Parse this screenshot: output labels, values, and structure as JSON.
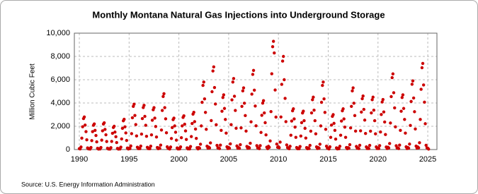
{
  "chart_data": {
    "type": "scatter",
    "title": "Monthly Montana Natural Gas Injections into Underground Storage",
    "y_label": "Million Cubic Feet",
    "source": "Source: U.S. Energy Information Administration",
    "color": "#cc0000",
    "grid": true,
    "xlim": [
      1989.5,
      2025.92
    ],
    "ylim": [
      0,
      10000
    ],
    "xticks": [
      1990,
      1995,
      2000,
      2005,
      2010,
      2015,
      2020,
      2025
    ],
    "yticks": [
      0,
      {
        "value": 2000,
        "label": "2,000"
      },
      {
        "value": 4000,
        "label": "4,000"
      },
      {
        "value": 6000,
        "label": "6,000"
      },
      {
        "value": 8000,
        "label": "8,000"
      },
      {
        "value": 10000,
        "label": "10,000"
      }
    ],
    "x": [
      1990.0,
      1990.08,
      1990.17,
      1990.25,
      1990.33,
      1990.42,
      1990.5,
      1990.58,
      1990.67,
      1990.75,
      1990.83,
      1990.92,
      1991.0,
      1991.08,
      1991.17,
      1991.25,
      1991.33,
      1991.42,
      1991.5,
      1991.58,
      1991.67,
      1991.75,
      1991.83,
      1991.92,
      1992.0,
      1992.08,
      1992.17,
      1992.25,
      1992.33,
      1992.42,
      1992.5,
      1992.58,
      1992.67,
      1992.75,
      1992.83,
      1992.92,
      1993.0,
      1993.08,
      1993.17,
      1993.25,
      1993.33,
      1993.42,
      1993.5,
      1993.58,
      1993.67,
      1993.75,
      1993.83,
      1993.92,
      1994.0,
      1994.08,
      1994.17,
      1994.25,
      1994.33,
      1994.42,
      1994.5,
      1994.58,
      1994.67,
      1994.75,
      1994.83,
      1994.92,
      1995.0,
      1995.08,
      1995.17,
      1995.25,
      1995.33,
      1995.42,
      1995.5,
      1995.58,
      1995.67,
      1995.75,
      1995.83,
      1995.92,
      1996.0,
      1996.08,
      1996.17,
      1996.25,
      1996.33,
      1996.42,
      1996.5,
      1996.58,
      1996.67,
      1996.75,
      1996.83,
      1996.92,
      1997.0,
      1997.08,
      1997.17,
      1997.25,
      1997.33,
      1997.42,
      1997.5,
      1997.58,
      1997.67,
      1997.75,
      1997.83,
      1997.92,
      1998.0,
      1998.08,
      1998.17,
      1998.25,
      1998.33,
      1998.42,
      1998.5,
      1998.58,
      1998.67,
      1998.75,
      1998.83,
      1998.92,
      1999.0,
      1999.08,
      1999.17,
      1999.25,
      1999.33,
      1999.42,
      1999.5,
      1999.58,
      1999.67,
      1999.75,
      1999.83,
      1999.92,
      2000.0,
      2000.08,
      2000.17,
      2000.25,
      2000.33,
      2000.42,
      2000.5,
      2000.58,
      2000.67,
      2000.75,
      2000.83,
      2000.92,
      2001.0,
      2001.08,
      2001.17,
      2001.25,
      2001.33,
      2001.42,
      2001.5,
      2001.58,
      2001.67,
      2001.75,
      2001.83,
      2001.92,
      2002.0,
      2002.08,
      2002.17,
      2002.25,
      2002.33,
      2002.42,
      2002.5,
      2002.58,
      2002.67,
      2002.75,
      2002.83,
      2002.92,
      2003.0,
      2003.08,
      2003.17,
      2003.25,
      2003.33,
      2003.42,
      2003.5,
      2003.58,
      2003.67,
      2003.75,
      2003.83,
      2003.92,
      2004.0,
      2004.08,
      2004.17,
      2004.25,
      2004.33,
      2004.42,
      2004.5,
      2004.58,
      2004.67,
      2004.75,
      2004.83,
      2004.92,
      2005.0,
      2005.08,
      2005.17,
      2005.25,
      2005.33,
      2005.42,
      2005.5,
      2005.58,
      2005.67,
      2005.75,
      2005.83,
      2005.92,
      2006.0,
      2006.08,
      2006.17,
      2006.25,
      2006.33,
      2006.42,
      2006.5,
      2006.58,
      2006.67,
      2006.75,
      2006.83,
      2006.92,
      2007.0,
      2007.08,
      2007.17,
      2007.25,
      2007.33,
      2007.42,
      2007.5,
      2007.58,
      2007.67,
      2007.75,
      2007.83,
      2007.92,
      2008.0,
      2008.08,
      2008.17,
      2008.25,
      2008.33,
      2008.42,
      2008.5,
      2008.58,
      2008.67,
      2008.75,
      2008.83,
      2008.92,
      2009.0,
      2009.08,
      2009.17,
      2009.25,
      2009.33,
      2009.42,
      2009.5,
      2009.58,
      2009.67,
      2009.75,
      2009.83,
      2009.92,
      2010.0,
      2010.08,
      2010.17,
      2010.25,
      2010.33,
      2010.42,
      2010.5,
      2010.58,
      2010.67,
      2010.75,
      2010.83,
      2010.92,
      2011.0,
      2011.08,
      2011.17,
      2011.25,
      2011.33,
      2011.42,
      2011.5,
      2011.58,
      2011.67,
      2011.75,
      2011.83,
      2011.92,
      2012.0,
      2012.08,
      2012.17,
      2012.25,
      2012.33,
      2012.42,
      2012.5,
      2012.58,
      2012.67,
      2012.75,
      2012.83,
      2012.92,
      2013.0,
      2013.08,
      2013.17,
      2013.25,
      2013.33,
      2013.42,
      2013.5,
      2013.58,
      2013.67,
      2013.75,
      2013.83,
      2013.92,
      2014.0,
      2014.08,
      2014.17,
      2014.25,
      2014.33,
      2014.42,
      2014.5,
      2014.58,
      2014.67,
      2014.75,
      2014.83,
      2014.92,
      2015.0,
      2015.08,
      2015.17,
      2015.25,
      2015.33,
      2015.42,
      2015.5,
      2015.58,
      2015.67,
      2015.75,
      2015.83,
      2015.92,
      2016.0,
      2016.08,
      2016.17,
      2016.25,
      2016.33,
      2016.42,
      2016.5,
      2016.58,
      2016.67,
      2016.75,
      2016.83,
      2016.92,
      2017.0,
      2017.08,
      2017.17,
      2017.25,
      2017.33,
      2017.42,
      2017.5,
      2017.58,
      2017.67,
      2017.75,
      2017.83,
      2017.92,
      2018.0,
      2018.08,
      2018.17,
      2018.25,
      2018.33,
      2018.42,
      2018.5,
      2018.58,
      2018.67,
      2018.75,
      2018.83,
      2018.92,
      2019.0,
      2019.08,
      2019.17,
      2019.25,
      2019.33,
      2019.42,
      2019.5,
      2019.58,
      2019.67,
      2019.75,
      2019.83,
      2019.92,
      2020.0,
      2020.08,
      2020.17,
      2020.25,
      2020.33,
      2020.42,
      2020.5,
      2020.58,
      2020.67,
      2020.75,
      2020.83,
      2020.92,
      2021.0,
      2021.08,
      2021.17,
      2021.25,
      2021.33,
      2021.42,
      2021.5,
      2021.58,
      2021.67,
      2021.75,
      2021.83,
      2021.92,
      2022.0,
      2022.08,
      2022.17,
      2022.25,
      2022.33,
      2022.42,
      2022.5,
      2022.58,
      2022.67,
      2022.75,
      2022.83,
      2022.92,
      2023.0,
      2023.08,
      2023.17,
      2023.25,
      2023.33,
      2023.42,
      2023.5,
      2023.58,
      2023.67,
      2023.75,
      2023.83,
      2023.92,
      2024.0,
      2024.08,
      2024.17,
      2024.25,
      2024.33,
      2024.42,
      2024.5,
      2024.58,
      2024.67,
      2024.75,
      2024.83,
      2024.92,
      2025.0,
      2025.08
    ],
    "values": [
      80,
      60,
      220,
      980,
      1960,
      2660,
      2800,
      2100,
      1540,
      840,
      140,
      60,
      70,
      40,
      180,
      770,
      1540,
      2090,
      2200,
      1650,
      1210,
      660,
      110,
      40,
      70,
      50,
      180,
      810,
      1610,
      2190,
      2300,
      1730,
      1270,
      690,
      120,
      50,
      60,
      40,
      160,
      700,
      1400,
      1900,
      2000,
      1500,
      1100,
      600,
      100,
      40,
      80,
      50,
      210,
      910,
      1820,
      2470,
      2600,
      1950,
      1430,
      780,
      130,
      50,
      120,
      80,
      310,
      1370,
      2730,
      3710,
      3900,
      2930,
      2150,
      1170,
      200,
      80,
      110,
      80,
      300,
      1330,
      2660,
      3610,
      3800,
      2850,
      2090,
      1140,
      190,
      80,
      110,
      70,
      290,
      1260,
      2520,
      3420,
      3600,
      2700,
      1980,
      1080,
      180,
      70,
      140,
      100,
      380,
      1680,
      3360,
      4560,
      4800,
      3600,
      2640,
      1440,
      240,
      100,
      80,
      50,
      220,
      950,
      1890,
      2570,
      2700,
      2030,
      1490,
      810,
      140,
      50,
      90,
      60,
      230,
      1020,
      2030,
      2760,
      2900,
      2180,
      1600,
      870,
      150,
      60,
      100,
      60,
      260,
      1120,
      2240,
      3040,
      3200,
      2400,
      1760,
      960,
      160,
      60,
      170,
      120,
      460,
      2030,
      4060,
      5510,
      5800,
      4350,
      3190,
      1740,
      290,
      120,
      210,
      140,
      570,
      2490,
      4970,
      6750,
      7100,
      5330,
      3910,
      2130,
      360,
      140,
      140,
      90,
      380,
      1650,
      3290,
      4470,
      4700,
      3530,
      2590,
      1410,
      240,
      90,
      180,
      120,
      490,
      2140,
      4270,
      5800,
      6100,
      4580,
      3360,
      1830,
      310,
      120,
      160,
      110,
      420,
      1860,
      3710,
      5040,
      5300,
      3980,
      2920,
      1590,
      270,
      110,
      200,
      140,
      540,
      2380,
      4760,
      6460,
      6800,
      5100,
      3740,
      2040,
      340,
      140,
      130,
      80,
      340,
      1470,
      2940,
      3990,
      4200,
      3150,
      2310,
      1260,
      210,
      80,
      280,
      190,
      740,
      3260,
      6510,
      8840,
      9300,
      8300,
      5120,
      2790,
      470,
      190,
      240,
      160,
      640,
      2800,
      5600,
      7600,
      8000,
      6000,
      4400,
      2400,
      400,
      160,
      110,
      70,
      280,
      1230,
      2450,
      3330,
      3500,
      2630,
      1930,
      1050,
      180,
      70,
      100,
      70,
      260,
      1160,
      2310,
      3140,
      3300,
      2480,
      1820,
      990,
      170,
      70,
      140,
      90,
      360,
      1580,
      3150,
      4280,
      4500,
      3380,
      2480,
      1350,
      230,
      90,
      170,
      120,
      460,
      2030,
      4060,
      5510,
      5800,
      4350,
      3190,
      1740,
      290,
      120,
      90,
      60,
      240,
      1050,
      2100,
      2850,
      3000,
      2250,
      1650,
      900,
      150,
      60,
      110,
      70,
      280,
      1230,
      2450,
      3330,
      3500,
      2630,
      1930,
      1050,
      180,
      70,
      160,
      110,
      420,
      1860,
      3710,
      5040,
      5300,
      3980,
      2920,
      1590,
      270,
      110,
      140,
      90,
      370,
      1610,
      3220,
      4370,
      4600,
      3450,
      2530,
      1380,
      230,
      90,
      140,
      90,
      360,
      1580,
      3150,
      4280,
      4500,
      3380,
      2480,
      1350,
      230,
      90,
      130,
      90,
      340,
      1510,
      3010,
      4090,
      4300,
      3230,
      2370,
      1290,
      220,
      90,
      200,
      130,
      520,
      2280,
      4550,
      6180,
      6500,
      4880,
      3580,
      1950,
      330,
      130,
      140,
      90,
      380,
      1650,
      3290,
      4470,
      4700,
      3530,
      2590,
      1410,
      240,
      90,
      180,
      120,
      470,
      2070,
      4130,
      5610,
      5900,
      4430,
      3250,
      1770,
      300,
      120,
      220,
      150,
      590,
      2590,
      5180,
      7030,
      7400,
      5550,
      4070,
      2220,
      370,
      150,
      120,
      40
    ]
  }
}
